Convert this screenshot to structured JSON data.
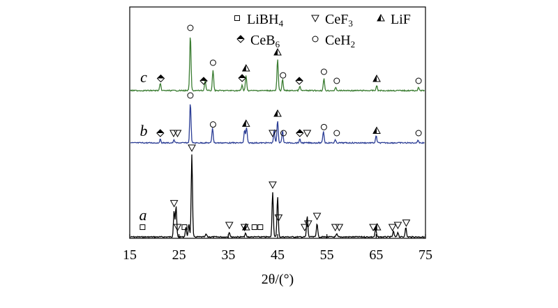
{
  "chart_data": {
    "type": "line",
    "title": "",
    "xlabel": "2θ/(°)",
    "xlim": [
      15,
      75
    ],
    "xticks": [
      15,
      25,
      35,
      45,
      55,
      65,
      75
    ],
    "ylabel": "",
    "legend": {
      "placement": "top-right",
      "entries": [
        {
          "symbol": "square",
          "label": "LiBH",
          "sub": "4"
        },
        {
          "symbol": "triangle-down",
          "label": "CeF",
          "sub": "3"
        },
        {
          "symbol": "triangle-half",
          "label": "LiF",
          "sub": ""
        },
        {
          "symbol": "diamond-half",
          "label": "CeB",
          "sub": "6"
        },
        {
          "symbol": "circle",
          "label": "CeH",
          "sub": "2"
        }
      ]
    },
    "series": [
      {
        "name": "a",
        "color": "#000000",
        "peaks": [
          {
            "x": 24.0,
            "h": 38
          },
          {
            "x": 24.4,
            "h": 44
          },
          {
            "x": 26.4,
            "h": 14
          },
          {
            "x": 27.0,
            "h": 18
          },
          {
            "x": 27.6,
            "h": 118
          },
          {
            "x": 30.5,
            "h": 4
          },
          {
            "x": 35.2,
            "h": 7
          },
          {
            "x": 38.5,
            "h": 5
          },
          {
            "x": 44.0,
            "h": 65
          },
          {
            "x": 45.0,
            "h": 58
          },
          {
            "x": 51.0,
            "h": 30
          },
          {
            "x": 53.0,
            "h": 20
          },
          {
            "x": 57.0,
            "h": 4
          },
          {
            "x": 64.9,
            "h": 12
          },
          {
            "x": 68.5,
            "h": 8
          },
          {
            "x": 69.4,
            "h": 7
          },
          {
            "x": 71.0,
            "h": 14
          }
        ],
        "markers": [
          {
            "x": 17.6,
            "s": "square"
          },
          {
            "x": 24.0,
            "s": "triangle-down"
          },
          {
            "x": 24.7,
            "s": "triangle-down"
          },
          {
            "x": 26.1,
            "s": "square"
          },
          {
            "x": 27.6,
            "s": "triangle-down"
          },
          {
            "x": 35.2,
            "s": "triangle-down"
          },
          {
            "x": 38.3,
            "s": "triangle-down"
          },
          {
            "x": 38.6,
            "s": "triangle-half"
          },
          {
            "x": 40.3,
            "s": "square"
          },
          {
            "x": 41.5,
            "s": "square"
          },
          {
            "x": 44.0,
            "s": "triangle-down"
          },
          {
            "x": 45.2,
            "s": "triangle-down"
          },
          {
            "x": 50.5,
            "s": "triangle-down"
          },
          {
            "x": 51.2,
            "s": "triangle-down"
          },
          {
            "x": 53.0,
            "s": "triangle-down"
          },
          {
            "x": 56.7,
            "s": "triangle-down"
          },
          {
            "x": 57.5,
            "s": "triangle-down"
          },
          {
            "x": 64.4,
            "s": "triangle-down"
          },
          {
            "x": 65.2,
            "s": "triangle-half"
          },
          {
            "x": 68.3,
            "s": "triangle-down"
          },
          {
            "x": 69.4,
            "s": "triangle-down"
          },
          {
            "x": 71.1,
            "s": "triangle-down"
          }
        ]
      },
      {
        "name": "b",
        "color": "#2b3d95",
        "peaks": [
          {
            "x": 21.2,
            "h": 5
          },
          {
            "x": 24.0,
            "h": 4
          },
          {
            "x": 27.3,
            "h": 58
          },
          {
            "x": 31.8,
            "h": 22
          },
          {
            "x": 38.3,
            "h": 18
          },
          {
            "x": 38.7,
            "h": 22
          },
          {
            "x": 44.3,
            "h": 18
          },
          {
            "x": 45.0,
            "h": 32
          },
          {
            "x": 46.0,
            "h": 18
          },
          {
            "x": 49.5,
            "h": 5
          },
          {
            "x": 54.3,
            "h": 17
          },
          {
            "x": 56.7,
            "h": 4
          },
          {
            "x": 65.0,
            "h": 10
          },
          {
            "x": 73.5,
            "h": 4
          }
        ],
        "markers": [
          {
            "x": 21.2,
            "s": "diamond-half"
          },
          {
            "x": 23.9,
            "s": "triangle-down"
          },
          {
            "x": 24.7,
            "s": "triangle-down"
          },
          {
            "x": 27.3,
            "s": "circle"
          },
          {
            "x": 31.9,
            "s": "circle"
          },
          {
            "x": 38.6,
            "s": "triangle-half"
          },
          {
            "x": 44.0,
            "s": "triangle-down"
          },
          {
            "x": 45.0,
            "s": "triangle-half"
          },
          {
            "x": 46.2,
            "s": "circle"
          },
          {
            "x": 49.5,
            "s": "diamond-half"
          },
          {
            "x": 51.0,
            "s": "triangle-down"
          },
          {
            "x": 54.4,
            "s": "circle"
          },
          {
            "x": 57.0,
            "s": "circle"
          },
          {
            "x": 65.1,
            "s": "triangle-half"
          },
          {
            "x": 73.6,
            "s": "circle"
          }
        ]
      },
      {
        "name": "c",
        "color": "#3b7d32",
        "peaks": [
          {
            "x": 21.2,
            "h": 10
          },
          {
            "x": 27.3,
            "h": 80
          },
          {
            "x": 30.3,
            "h": 15
          },
          {
            "x": 31.9,
            "h": 30
          },
          {
            "x": 37.8,
            "h": 8
          },
          {
            "x": 38.6,
            "h": 22
          },
          {
            "x": 45.0,
            "h": 45
          },
          {
            "x": 46.0,
            "h": 16
          },
          {
            "x": 49.5,
            "h": 6
          },
          {
            "x": 54.4,
            "h": 17
          },
          {
            "x": 56.8,
            "h": 4
          },
          {
            "x": 65.1,
            "h": 7
          },
          {
            "x": 73.6,
            "h": 4
          }
        ],
        "markers": [
          {
            "x": 21.3,
            "s": "diamond-half"
          },
          {
            "x": 27.3,
            "s": "circle"
          },
          {
            "x": 30.0,
            "s": "diamond-half"
          },
          {
            "x": 31.9,
            "s": "circle"
          },
          {
            "x": 37.8,
            "s": "diamond-half"
          },
          {
            "x": 38.6,
            "s": "triangle-half"
          },
          {
            "x": 45.0,
            "s": "triangle-half"
          },
          {
            "x": 46.1,
            "s": "circle"
          },
          {
            "x": 49.4,
            "s": "diamond-half"
          },
          {
            "x": 54.4,
            "s": "circle"
          },
          {
            "x": 57.0,
            "s": "circle"
          },
          {
            "x": 65.1,
            "s": "triangle-half"
          },
          {
            "x": 73.6,
            "s": "circle"
          }
        ]
      }
    ]
  }
}
